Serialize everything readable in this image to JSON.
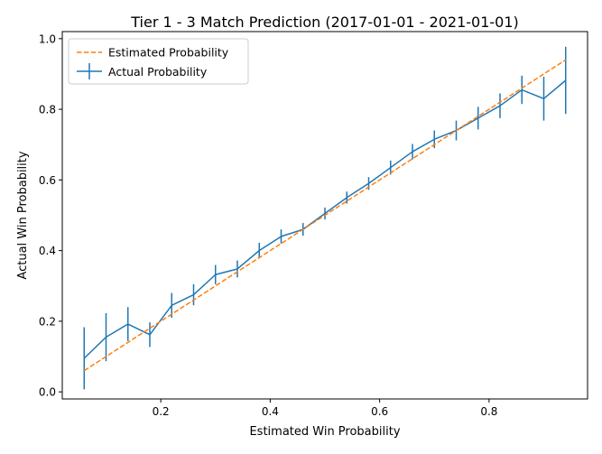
{
  "chart_data": {
    "type": "line",
    "title": "Tier 1 - 3 Match Prediction (2017-01-01 - 2021-01-01)",
    "xlabel": "Estimated Win Probability",
    "ylabel": "Actual Win Probability",
    "xlim": [
      0.02,
      0.98
    ],
    "ylim": [
      -0.02,
      1.02
    ],
    "xticks": [
      0.2,
      0.4,
      0.6,
      0.8
    ],
    "xtick_labels": [
      "0.2",
      "0.4",
      "0.6",
      "0.8"
    ],
    "yticks": [
      0.0,
      0.2,
      0.4,
      0.6,
      0.8,
      1.0
    ],
    "ytick_labels": [
      "0.0",
      "0.2",
      "0.4",
      "0.6",
      "0.8",
      "1.0"
    ],
    "grid": false,
    "legend_position": "top-left",
    "series": [
      {
        "name": "Estimated Probability",
        "style": "dashed",
        "color": "#ff7f0e",
        "x": [
          0.06,
          0.94
        ],
        "y": [
          0.06,
          0.94
        ]
      },
      {
        "name": "Actual Probability",
        "style": "solid-errorbar",
        "color": "#1f77b4",
        "x": [
          0.06,
          0.1,
          0.14,
          0.18,
          0.22,
          0.26,
          0.3,
          0.34,
          0.38,
          0.42,
          0.46,
          0.5,
          0.54,
          0.58,
          0.62,
          0.66,
          0.7,
          0.74,
          0.78,
          0.82,
          0.86,
          0.9,
          0.94
        ],
        "y": [
          0.095,
          0.155,
          0.192,
          0.162,
          0.245,
          0.275,
          0.332,
          0.348,
          0.4,
          0.44,
          0.46,
          0.505,
          0.55,
          0.59,
          0.635,
          0.68,
          0.715,
          0.74,
          0.775,
          0.81,
          0.855,
          0.83,
          0.882
        ],
        "err": [
          0.088,
          0.068,
          0.048,
          0.035,
          0.035,
          0.03,
          0.027,
          0.024,
          0.022,
          0.02,
          0.018,
          0.017,
          0.017,
          0.018,
          0.02,
          0.022,
          0.025,
          0.028,
          0.032,
          0.035,
          0.04,
          0.062,
          0.095
        ]
      }
    ]
  }
}
